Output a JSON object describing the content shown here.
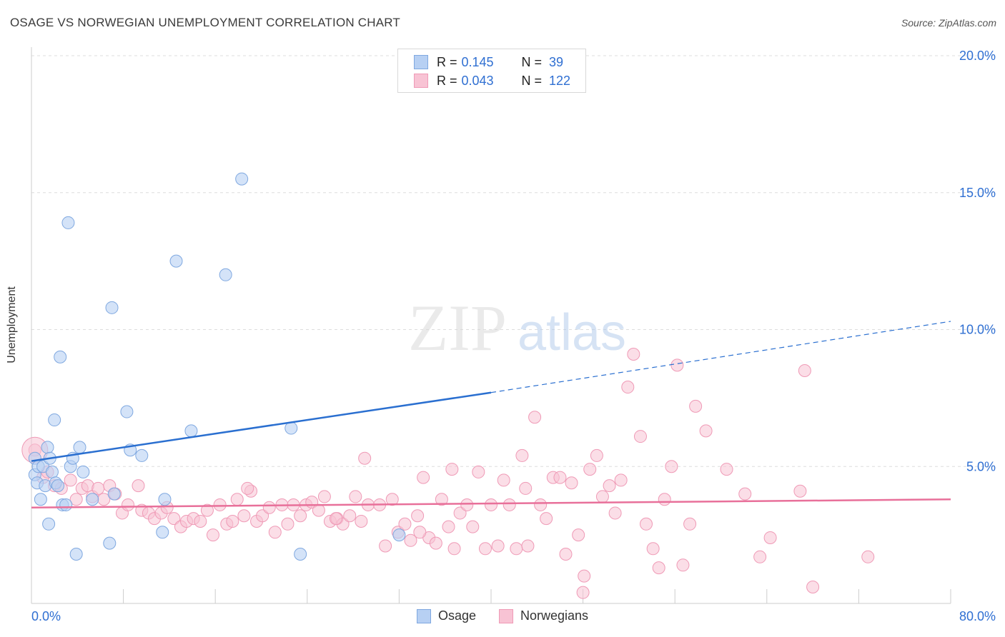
{
  "title": "OSAGE VS NORWEGIAN UNEMPLOYMENT CORRELATION CHART",
  "source": "Source: ZipAtlas.com",
  "watermark": {
    "zip": "ZIP",
    "atlas": "atlas"
  },
  "legend": {
    "rows": [
      {
        "r_label": "R = ",
        "r_value": "0.145",
        "n_label": "N = ",
        "n_value": "39"
      },
      {
        "r_label": "R = ",
        "r_value": "0.043",
        "n_label": "N = ",
        "n_value": "122"
      }
    ]
  },
  "bottom_legend": {
    "osage": "Osage",
    "norwegians": "Norwegians"
  },
  "colors": {
    "osage_fill": "#b7d0f3",
    "osage_stroke": "#7fa8e0",
    "osage_line": "#2a6fd0",
    "norw_fill": "#f8c3d4",
    "norw_stroke": "#ef9ab6",
    "norw_line": "#e8709a",
    "axis_text": "#2f6fd2",
    "grid": "#dddddd"
  },
  "chart_data": {
    "type": "scatter",
    "title": "OSAGE VS NORWEGIAN UNEMPLOYMENT CORRELATION CHART",
    "xlabel": "",
    "ylabel": "Unemployment",
    "xlim": [
      0,
      80
    ],
    "ylim": [
      0,
      20
    ],
    "x_tick_labels": [
      "0.0%",
      "80.0%"
    ],
    "y_ticks": [
      5,
      10,
      15,
      20
    ],
    "y_tick_labels": [
      "5.0%",
      "10.0%",
      "15.0%",
      "20.0%"
    ],
    "grid": true,
    "series": [
      {
        "name": "Osage",
        "trend": {
          "x0": 0,
          "y0": 5.2,
          "x1": 40,
          "y1": 7.7,
          "dashed_to_x": 80,
          "dashed_to_y": 10.3
        },
        "points": [
          [
            0.3,
            5.3
          ],
          [
            0.3,
            4.7
          ],
          [
            0.5,
            4.4
          ],
          [
            0.6,
            5.0
          ],
          [
            0.8,
            3.8
          ],
          [
            1.0,
            5.0
          ],
          [
            1.2,
            4.3
          ],
          [
            1.4,
            5.7
          ],
          [
            1.5,
            2.9
          ],
          [
            1.6,
            5.3
          ],
          [
            1.8,
            4.8
          ],
          [
            2.0,
            6.7
          ],
          [
            2.1,
            4.4
          ],
          [
            2.3,
            4.3
          ],
          [
            2.5,
            9.0
          ],
          [
            2.7,
            3.6
          ],
          [
            3.0,
            3.6
          ],
          [
            3.2,
            13.9
          ],
          [
            3.4,
            5.0
          ],
          [
            3.6,
            5.3
          ],
          [
            3.9,
            1.8
          ],
          [
            4.2,
            5.7
          ],
          [
            4.5,
            4.8
          ],
          [
            5.3,
            3.8
          ],
          [
            6.8,
            2.2
          ],
          [
            7.0,
            10.8
          ],
          [
            7.2,
            4.0
          ],
          [
            8.3,
            7.0
          ],
          [
            8.6,
            5.6
          ],
          [
            9.6,
            5.4
          ],
          [
            11.4,
            2.6
          ],
          [
            11.6,
            3.8
          ],
          [
            12.6,
            12.5
          ],
          [
            13.9,
            6.3
          ],
          [
            16.9,
            12.0
          ],
          [
            18.3,
            15.5
          ],
          [
            22.6,
            6.4
          ],
          [
            23.4,
            1.8
          ],
          [
            32.0,
            2.5
          ]
        ]
      },
      {
        "name": "Norwegians",
        "trend": {
          "x0": 0,
          "y0": 3.5,
          "x1": 80,
          "y1": 3.8
        },
        "points": [
          [
            0.3,
            5.6
          ],
          [
            1.0,
            4.6
          ],
          [
            1.4,
            4.8
          ],
          [
            2.0,
            4.3
          ],
          [
            2.6,
            4.2
          ],
          [
            3.4,
            4.5
          ],
          [
            3.9,
            3.8
          ],
          [
            4.4,
            4.2
          ],
          [
            4.9,
            4.3
          ],
          [
            5.3,
            3.9
          ],
          [
            5.8,
            4.2
          ],
          [
            6.3,
            3.8
          ],
          [
            6.8,
            4.3
          ],
          [
            7.3,
            4.0
          ],
          [
            7.9,
            3.3
          ],
          [
            8.4,
            3.6
          ],
          [
            9.3,
            4.3
          ],
          [
            9.6,
            3.4
          ],
          [
            10.2,
            3.3
          ],
          [
            10.7,
            3.1
          ],
          [
            11.3,
            3.3
          ],
          [
            11.8,
            3.5
          ],
          [
            12.4,
            3.1
          ],
          [
            13.0,
            2.8
          ],
          [
            13.5,
            3.0
          ],
          [
            14.1,
            3.1
          ],
          [
            14.7,
            3.0
          ],
          [
            15.3,
            3.4
          ],
          [
            15.8,
            2.5
          ],
          [
            16.4,
            3.6
          ],
          [
            17.0,
            2.9
          ],
          [
            17.5,
            3.0
          ],
          [
            17.9,
            3.8
          ],
          [
            18.5,
            3.2
          ],
          [
            19.1,
            4.1
          ],
          [
            19.6,
            3.0
          ],
          [
            20.1,
            3.2
          ],
          [
            20.7,
            3.5
          ],
          [
            21.2,
            2.6
          ],
          [
            21.8,
            3.6
          ],
          [
            22.3,
            2.9
          ],
          [
            22.8,
            3.6
          ],
          [
            23.4,
            3.2
          ],
          [
            23.9,
            3.6
          ],
          [
            24.4,
            3.7
          ],
          [
            25.0,
            3.4
          ],
          [
            25.5,
            3.9
          ],
          [
            26.0,
            3.0
          ],
          [
            26.6,
            3.1
          ],
          [
            27.1,
            2.9
          ],
          [
            27.7,
            3.2
          ],
          [
            28.2,
            3.9
          ],
          [
            28.7,
            3.0
          ],
          [
            29.3,
            3.6
          ],
          [
            30.3,
            3.6
          ],
          [
            30.8,
            2.1
          ],
          [
            31.4,
            3.8
          ],
          [
            31.9,
            2.6
          ],
          [
            32.5,
            2.9
          ],
          [
            33.0,
            2.3
          ],
          [
            33.6,
            3.2
          ],
          [
            34.1,
            4.6
          ],
          [
            34.6,
            2.4
          ],
          [
            35.2,
            2.2
          ],
          [
            35.7,
            3.8
          ],
          [
            36.3,
            2.8
          ],
          [
            36.8,
            2.0
          ],
          [
            37.3,
            3.3
          ],
          [
            37.9,
            3.6
          ],
          [
            38.4,
            2.8
          ],
          [
            38.9,
            4.8
          ],
          [
            39.5,
            2.0
          ],
          [
            40.0,
            3.6
          ],
          [
            40.6,
            2.1
          ],
          [
            41.1,
            4.5
          ],
          [
            41.6,
            3.6
          ],
          [
            42.2,
            2.0
          ],
          [
            42.7,
            5.4
          ],
          [
            43.2,
            2.1
          ],
          [
            43.8,
            6.8
          ],
          [
            44.3,
            3.6
          ],
          [
            44.8,
            3.1
          ],
          [
            45.4,
            4.6
          ],
          [
            46.0,
            4.6
          ],
          [
            46.5,
            1.8
          ],
          [
            47.0,
            4.4
          ],
          [
            47.6,
            2.5
          ],
          [
            48.1,
            1.0
          ],
          [
            48.6,
            4.9
          ],
          [
            49.2,
            5.4
          ],
          [
            49.7,
            3.9
          ],
          [
            50.3,
            4.3
          ],
          [
            50.8,
            3.3
          ],
          [
            51.3,
            4.5
          ],
          [
            51.9,
            7.9
          ],
          [
            52.4,
            9.1
          ],
          [
            53.0,
            6.1
          ],
          [
            53.5,
            2.9
          ],
          [
            54.1,
            2.0
          ],
          [
            54.6,
            1.3
          ],
          [
            55.1,
            3.8
          ],
          [
            55.7,
            5.0
          ],
          [
            56.2,
            8.7
          ],
          [
            56.7,
            1.4
          ],
          [
            57.3,
            2.9
          ],
          [
            57.8,
            7.2
          ],
          [
            58.7,
            6.3
          ],
          [
            60.5,
            4.9
          ],
          [
            62.1,
            4.0
          ],
          [
            63.4,
            1.7
          ],
          [
            64.3,
            2.4
          ],
          [
            66.9,
            4.1
          ],
          [
            67.3,
            8.5
          ],
          [
            68.0,
            0.6
          ],
          [
            72.8,
            1.7
          ],
          [
            29.0,
            5.3
          ],
          [
            48.0,
            0.4
          ],
          [
            36.6,
            4.9
          ],
          [
            43.0,
            4.2
          ],
          [
            18.8,
            4.2
          ],
          [
            33.8,
            2.6
          ],
          [
            26.5,
            3.1
          ]
        ]
      }
    ]
  }
}
